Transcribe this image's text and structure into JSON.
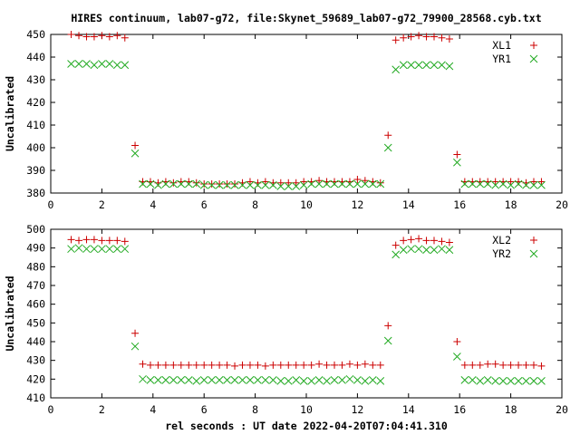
{
  "title": "HIRES continuum, lab07-g72, file:Skynet_59689_lab07-g72_79900_28568.cyb.txt",
  "xlabel": "rel seconds : UT date 2022-04-20T07:04:41.310",
  "colors": {
    "series_a": "#cc0000",
    "series_b": "#22aa22"
  },
  "chart_data": [
    {
      "type": "scatter",
      "ylabel": "Uncalibrated",
      "xlim": [
        0,
        20
      ],
      "ylim": [
        380,
        450
      ],
      "xticks": [
        0,
        2,
        4,
        6,
        8,
        10,
        12,
        14,
        16,
        18,
        20
      ],
      "yticks": [
        380,
        390,
        400,
        410,
        420,
        430,
        440,
        450
      ],
      "legend_position": "top-right",
      "x": [
        0.8,
        1.1,
        1.4,
        1.7,
        2.0,
        2.3,
        2.6,
        2.9,
        3.3,
        3.6,
        3.9,
        4.2,
        4.5,
        4.8,
        5.1,
        5.4,
        5.7,
        6.0,
        6.3,
        6.6,
        6.9,
        7.2,
        7.5,
        7.8,
        8.1,
        8.4,
        8.7,
        9.0,
        9.3,
        9.6,
        9.9,
        10.2,
        10.5,
        10.8,
        11.1,
        11.4,
        11.7,
        12.0,
        12.3,
        12.6,
        12.9,
        13.2,
        13.5,
        13.8,
        14.1,
        14.4,
        14.7,
        15.0,
        15.3,
        15.6,
        15.9,
        16.2,
        16.5,
        16.8,
        17.1,
        17.4,
        17.7,
        18.0,
        18.3,
        18.6,
        18.9,
        19.2
      ],
      "series": [
        {
          "name": "XL1",
          "marker": "plus",
          "values": [
            450,
            449.5,
            449,
            449,
            449.5,
            449,
            449.5,
            448.5,
            401,
            385,
            385,
            384.5,
            385,
            384.5,
            385,
            385,
            384.5,
            384,
            384,
            384,
            384,
            384,
            384.5,
            385,
            384.5,
            385,
            384.5,
            384.5,
            384.5,
            384.5,
            385,
            385,
            385.5,
            385,
            385,
            385,
            385,
            386,
            385.5,
            385,
            384.5,
            405.5,
            447.5,
            448.5,
            449,
            449.5,
            449,
            449,
            448.5,
            448,
            397,
            385,
            385,
            385,
            385,
            385,
            385,
            385,
            385,
            384.5,
            385,
            385
          ]
        },
        {
          "name": "YR1",
          "marker": "cross",
          "values": [
            437,
            437,
            437,
            436.5,
            437,
            437,
            436.5,
            436.5,
            397.5,
            384,
            384,
            383.5,
            384,
            384,
            384,
            384,
            384,
            383.5,
            383.5,
            383.5,
            383.5,
            383.5,
            383.5,
            383.5,
            383.5,
            383.5,
            383.5,
            383,
            383,
            383,
            383.5,
            384,
            384,
            384,
            384,
            384,
            384,
            384,
            384,
            384,
            384,
            400,
            434.5,
            436.5,
            436.5,
            436.5,
            436.5,
            436.5,
            436.5,
            436,
            393.5,
            384,
            384,
            384,
            384,
            383.5,
            384,
            383.5,
            384,
            383.5,
            383.5,
            383.5
          ]
        }
      ]
    },
    {
      "type": "scatter",
      "ylabel": "Uncalibrated",
      "xlim": [
        0,
        20
      ],
      "ylim": [
        410,
        500
      ],
      "xticks": [
        0,
        2,
        4,
        6,
        8,
        10,
        12,
        14,
        16,
        18,
        20
      ],
      "yticks": [
        410,
        420,
        430,
        440,
        450,
        460,
        470,
        480,
        490,
        500
      ],
      "legend_position": "top-right",
      "x": [
        0.8,
        1.1,
        1.4,
        1.7,
        2.0,
        2.3,
        2.6,
        2.9,
        3.3,
        3.6,
        3.9,
        4.2,
        4.5,
        4.8,
        5.1,
        5.4,
        5.7,
        6.0,
        6.3,
        6.6,
        6.9,
        7.2,
        7.5,
        7.8,
        8.1,
        8.4,
        8.7,
        9.0,
        9.3,
        9.6,
        9.9,
        10.2,
        10.5,
        10.8,
        11.1,
        11.4,
        11.7,
        12.0,
        12.3,
        12.6,
        12.9,
        13.2,
        13.5,
        13.8,
        14.1,
        14.4,
        14.7,
        15.0,
        15.3,
        15.6,
        15.9,
        16.2,
        16.5,
        16.8,
        17.1,
        17.4,
        17.7,
        18.0,
        18.3,
        18.6,
        18.9,
        19.2
      ],
      "series": [
        {
          "name": "XL2",
          "marker": "plus",
          "values": [
            494.5,
            494,
            494.5,
            494.5,
            494,
            494,
            494,
            493.5,
            444.5,
            428,
            427.5,
            427.5,
            427.5,
            427.5,
            427.5,
            427.5,
            427.5,
            427.5,
            427.5,
            427.5,
            427.5,
            427,
            427.5,
            427.5,
            427.5,
            427,
            427.5,
            427.5,
            427.5,
            427.5,
            427.5,
            427.5,
            428,
            427.5,
            427.5,
            427.5,
            428,
            427.5,
            428,
            427.5,
            427.5,
            448.5,
            491.5,
            494,
            494.5,
            495,
            494,
            494,
            493.5,
            493,
            440,
            427.5,
            427.5,
            427.5,
            428,
            428,
            427.5,
            427.5,
            427.5,
            427.5,
            427.5,
            427
          ]
        },
        {
          "name": "YR2",
          "marker": "cross",
          "values": [
            489.5,
            490,
            489.5,
            489.5,
            489.5,
            489.5,
            489.5,
            489.5,
            437.5,
            420,
            419.5,
            419.5,
            419.5,
            419.5,
            419.5,
            419.5,
            419,
            419.5,
            419.5,
            419.5,
            419.5,
            419.5,
            419.5,
            419.5,
            419.5,
            419.5,
            419.5,
            419,
            419,
            419.5,
            419,
            419,
            419.5,
            419,
            419.5,
            419.5,
            420,
            419.5,
            419,
            419.5,
            419,
            440.5,
            486.5,
            489,
            489.5,
            489.5,
            489,
            489,
            489.5,
            489,
            432,
            419.5,
            419.5,
            419,
            419.5,
            419,
            419,
            419,
            419,
            419,
            419,
            419
          ]
        }
      ]
    }
  ]
}
